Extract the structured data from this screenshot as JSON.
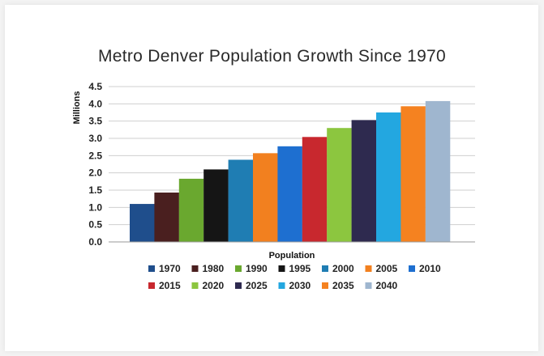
{
  "chart_data": {
    "type": "bar",
    "title": "Metro Denver Population Growth Since 1970",
    "xlabel": "Population",
    "ylabel": "Millions",
    "ylim": [
      0,
      4.5
    ],
    "yticks": [
      "0.0",
      "0.5",
      "1.0",
      "1.5",
      "2.0",
      "2.5",
      "3.0",
      "3.5",
      "4.0",
      "4.5"
    ],
    "grid": true,
    "legend_position": "bottom",
    "series": [
      {
        "name": "1970",
        "value": 1.1,
        "color": "#1f4e8c"
      },
      {
        "name": "1980",
        "value": 1.43,
        "color": "#4a1f1f"
      },
      {
        "name": "1990",
        "value": 1.83,
        "color": "#6aa82f"
      },
      {
        "name": "1995",
        "value": 2.1,
        "color": "#151515"
      },
      {
        "name": "2000",
        "value": 2.38,
        "color": "#1f7db3"
      },
      {
        "name": "2005",
        "value": 2.57,
        "color": "#f2801f"
      },
      {
        "name": "2010",
        "value": 2.77,
        "color": "#1e6fd0"
      },
      {
        "name": "2015",
        "value": 3.04,
        "color": "#c8282e"
      },
      {
        "name": "2020",
        "value": 3.3,
        "color": "#8cc63f"
      },
      {
        "name": "2025",
        "value": 3.53,
        "color": "#2e2a4f"
      },
      {
        "name": "2030",
        "value": 3.75,
        "color": "#23a7e0"
      },
      {
        "name": "2035",
        "value": 3.93,
        "color": "#f58220"
      },
      {
        "name": "2040",
        "value": 4.08,
        "color": "#9fb6cf"
      }
    ]
  }
}
